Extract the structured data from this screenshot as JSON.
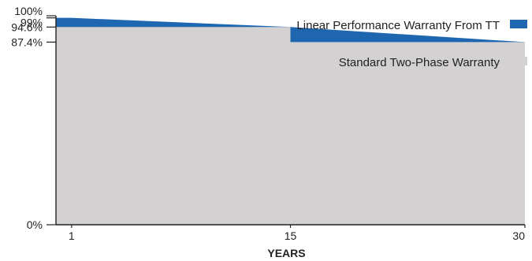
{
  "chart_data": {
    "type": "area",
    "xlabel": "YEARS",
    "ylabel": "",
    "title": "",
    "xlim": [
      0,
      30
    ],
    "ylim": [
      0,
      100
    ],
    "x_ticks": [
      {
        "value": 1,
        "label": "1"
      },
      {
        "value": 15,
        "label": "15"
      },
      {
        "value": 30,
        "label": "30"
      }
    ],
    "y_ticks": [
      {
        "value": 0,
        "label": "0%"
      },
      {
        "value": 87.4,
        "label": "87.4%"
      },
      {
        "value": 94.6,
        "label": "94.6%"
      },
      {
        "value": 99,
        "label": "99%"
      },
      {
        "value": 100,
        "label": "100%"
      }
    ],
    "grid": false,
    "legend_position": "top-right",
    "series": [
      {
        "name": "Linear Performance Warranty From TT",
        "color": "#1f66b0",
        "points": [
          [
            0,
            99
          ],
          [
            1,
            99
          ],
          [
            15,
            94.6
          ],
          [
            30,
            87.4
          ]
        ]
      },
      {
        "name": "Standard Two-Phase Warranty",
        "color": "#d3d1d2",
        "points": [
          [
            0,
            94.6
          ],
          [
            15,
            94.6
          ],
          [
            15,
            87.4
          ],
          [
            30,
            87.4
          ]
        ]
      }
    ]
  }
}
